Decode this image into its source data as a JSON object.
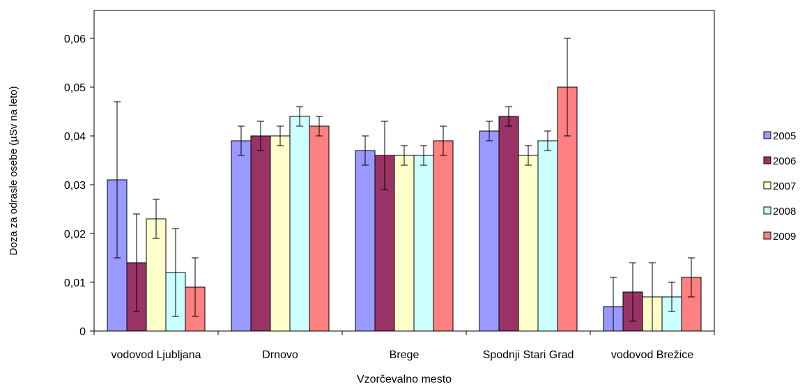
{
  "chart_data": {
    "type": "bar",
    "xlabel": "Vzorčevalno mesto",
    "ylabel": "Doza za odrasle osebe (µSv na leto)",
    "ylim": [
      0,
      0.07
    ],
    "yticks": [
      0,
      0.01,
      0.02,
      0.03,
      0.04,
      0.05,
      0.06
    ],
    "ytick_labels": [
      "0",
      "0,01",
      "0,02",
      "0,03",
      "0,04",
      "0,05",
      "0,06"
    ],
    "categories": [
      "vodovod Ljubljana",
      "Drnovo",
      "Brege",
      "Spodnji Stari Grad",
      "vodovod Brežice"
    ],
    "legend_position": "right",
    "grid": false,
    "series": [
      {
        "name": "2005",
        "color": "#9999ff",
        "values": [
          0.031,
          0.039,
          0.037,
          0.041,
          0.005
        ],
        "err_low": [
          0.015,
          0.036,
          0.034,
          0.039,
          0.0
        ],
        "err_high": [
          0.047,
          0.042,
          0.04,
          0.043,
          0.011
        ]
      },
      {
        "name": "2006",
        "color": "#993366",
        "values": [
          0.014,
          0.04,
          0.036,
          0.044,
          0.008
        ],
        "err_low": [
          0.004,
          0.037,
          0.029,
          0.042,
          0.002
        ],
        "err_high": [
          0.024,
          0.043,
          0.043,
          0.046,
          0.014
        ]
      },
      {
        "name": "2007",
        "color": "#ffffcc",
        "values": [
          0.023,
          0.04,
          0.036,
          0.036,
          0.007
        ],
        "err_low": [
          0.019,
          0.038,
          0.034,
          0.034,
          0.0
        ],
        "err_high": [
          0.027,
          0.042,
          0.038,
          0.038,
          0.014
        ]
      },
      {
        "name": "2008",
        "color": "#ccffff",
        "values": [
          0.012,
          0.044,
          0.036,
          0.039,
          0.007
        ],
        "err_low": [
          0.003,
          0.042,
          0.034,
          0.037,
          0.004
        ],
        "err_high": [
          0.021,
          0.046,
          0.038,
          0.041,
          0.01
        ]
      },
      {
        "name": "2009",
        "color": "#ff8080",
        "values": [
          0.009,
          0.042,
          0.039,
          0.05,
          0.011
        ],
        "err_low": [
          0.003,
          0.04,
          0.036,
          0.04,
          0.007
        ],
        "err_high": [
          0.015,
          0.044,
          0.042,
          0.06,
          0.015
        ]
      }
    ]
  }
}
